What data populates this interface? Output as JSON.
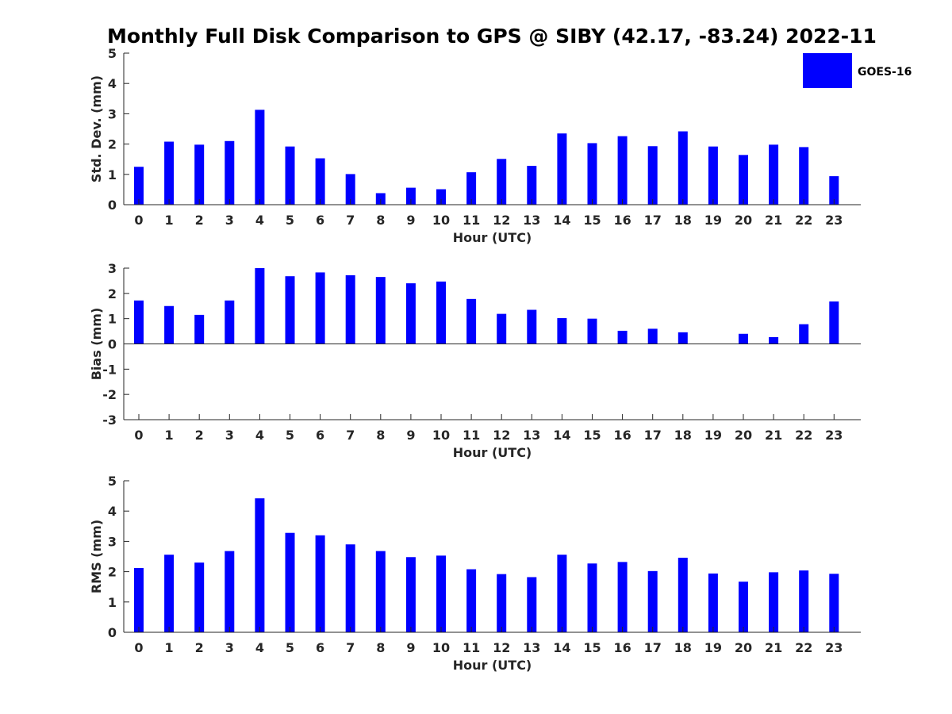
{
  "title": "Monthly Full Disk Comparison to GPS @ SIBY (42.17, -83.24) 2022-11",
  "legend": {
    "label": "GOES-16",
    "color": "#0000ff"
  },
  "chart_data": [
    {
      "type": "bar",
      "name": "std-dev",
      "ylabel": "Std. Dev. (mm)",
      "xlabel": "Hour (UTC)",
      "ylim": [
        0,
        5
      ],
      "yticks": [
        0,
        1,
        2,
        3,
        4,
        5
      ],
      "categories": [
        0,
        1,
        2,
        3,
        4,
        5,
        6,
        7,
        8,
        9,
        10,
        11,
        12,
        13,
        14,
        15,
        16,
        17,
        18,
        19,
        20,
        21,
        22,
        23
      ],
      "series": [
        {
          "name": "GOES-16",
          "color": "#0000ff",
          "values": [
            1.25,
            2.08,
            1.98,
            2.1,
            3.13,
            1.92,
            1.53,
            1.01,
            0.38,
            0.56,
            0.51,
            1.07,
            1.51,
            1.28,
            2.35,
            2.03,
            2.26,
            1.93,
            2.42,
            1.92,
            1.64,
            1.98,
            1.9,
            0.94
          ]
        }
      ]
    },
    {
      "type": "bar",
      "name": "bias",
      "ylabel": "Bias (mm)",
      "xlabel": "Hour (UTC)",
      "ylim": [
        -3,
        3
      ],
      "yticks": [
        -3,
        -2,
        -1,
        0,
        1,
        2,
        3
      ],
      "categories": [
        0,
        1,
        2,
        3,
        4,
        5,
        6,
        7,
        8,
        9,
        10,
        11,
        12,
        13,
        14,
        15,
        16,
        17,
        18,
        19,
        20,
        21,
        22,
        23
      ],
      "series": [
        {
          "name": "GOES-16",
          "color": "#0000ff",
          "values": [
            1.72,
            1.5,
            1.15,
            1.72,
            3.0,
            2.68,
            2.83,
            2.72,
            2.65,
            2.4,
            2.47,
            1.78,
            1.19,
            1.35,
            1.02,
            1.0,
            0.52,
            0.6,
            0.46,
            0.0,
            0.4,
            0.27,
            0.78,
            1.68
          ]
        }
      ]
    },
    {
      "type": "bar",
      "name": "rms",
      "ylabel": "RMS (mm)",
      "xlabel": "Hour (UTC)",
      "ylim": [
        0,
        5
      ],
      "yticks": [
        0,
        1,
        2,
        3,
        4,
        5
      ],
      "categories": [
        0,
        1,
        2,
        3,
        4,
        5,
        6,
        7,
        8,
        9,
        10,
        11,
        12,
        13,
        14,
        15,
        16,
        17,
        18,
        19,
        20,
        21,
        22,
        23
      ],
      "series": [
        {
          "name": "GOES-16",
          "color": "#0000ff",
          "values": [
            2.12,
            2.56,
            2.3,
            2.68,
            4.42,
            3.28,
            3.2,
            2.9,
            2.68,
            2.48,
            2.53,
            2.08,
            1.92,
            1.82,
            2.56,
            2.27,
            2.32,
            2.02,
            2.46,
            1.94,
            1.67,
            1.98,
            2.04,
            1.93
          ]
        }
      ]
    }
  ]
}
